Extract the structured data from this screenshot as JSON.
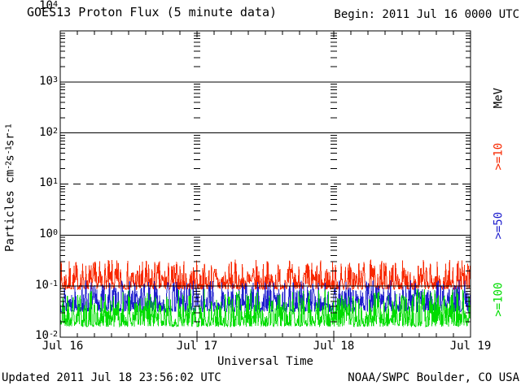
{
  "window": {
    "title": "GOES13 Proton Flux (5 minute data)",
    "begin_label": "Begin: 2011 Jul 16 0000 UTC"
  },
  "footer": {
    "updated": "Updated 2011 Jul 18 23:56:02 UTC",
    "credit": "NOAA/SWPC Boulder, CO USA"
  },
  "chart_data": {
    "type": "line",
    "title": "GOES13 Proton Flux (5 minute data)",
    "begin": "Begin: 2011 Jul 16 0000 UTC",
    "xlabel": "Universal Time",
    "ylabel_parts": [
      "Particles cm",
      "-2",
      "s",
      "-1",
      "sr",
      "-1"
    ],
    "right_axis_label": "MeV",
    "log_scale": true,
    "ylim_log10": [
      -2,
      4
    ],
    "grid": {
      "solid_hlines_log10": [
        3,
        2,
        0,
        -1
      ],
      "dashed_hlines_log10": [
        1
      ],
      "inner_minor_tick_columns_at_day": [
        1,
        2
      ]
    },
    "yticks": [
      {
        "base": "10",
        "exp": "4"
      },
      {
        "base": "10",
        "exp": "3"
      },
      {
        "base": "10",
        "exp": "2"
      },
      {
        "base": "10",
        "exp": "1"
      },
      {
        "base": "10",
        "exp": "0"
      },
      {
        "base": "10",
        "exp": "-1"
      },
      {
        "base": "10",
        "exp": "-2"
      }
    ],
    "xticks": [
      "Jul 16",
      "Jul 17",
      "Jul 18",
      "Jul 19"
    ],
    "minor_xticks_per_day": 8,
    "series": [
      {
        "name": ">=10 MeV",
        "legend": ">=10",
        "color": "#f82800",
        "points_per_day": 288,
        "days": 3,
        "approx_flux": {
          "median": "1.1e-1",
          "min": "8.7e-2",
          "max": "3.3e-1"
        },
        "synth": {
          "seed": 7,
          "floor_log10": -1.06,
          "amp_log10": 0.58,
          "pow": 2.6
        }
      },
      {
        "name": ">=50 MeV",
        "legend": ">=50",
        "color": "#1e1ecd",
        "points_per_day": 288,
        "days": 3,
        "approx_flux": {
          "median": "4.3e-2",
          "min": "3.2e-2",
          "max": "1.3e-1"
        },
        "synth": {
          "seed": 13,
          "floor_log10": -1.5,
          "amp_log10": 0.62,
          "pow": 2.2
        }
      },
      {
        "name": ">=100 MeV",
        "legend": ">=100",
        "color": "#00dc00",
        "points_per_day": 288,
        "days": 3,
        "approx_flux": {
          "median": "2.2e-2",
          "min": "1.6e-2",
          "max": "8.9e-2"
        },
        "synth": {
          "seed": 21,
          "floor_log10": -1.79,
          "amp_log10": 0.74,
          "pow": 2.4
        }
      }
    ]
  }
}
